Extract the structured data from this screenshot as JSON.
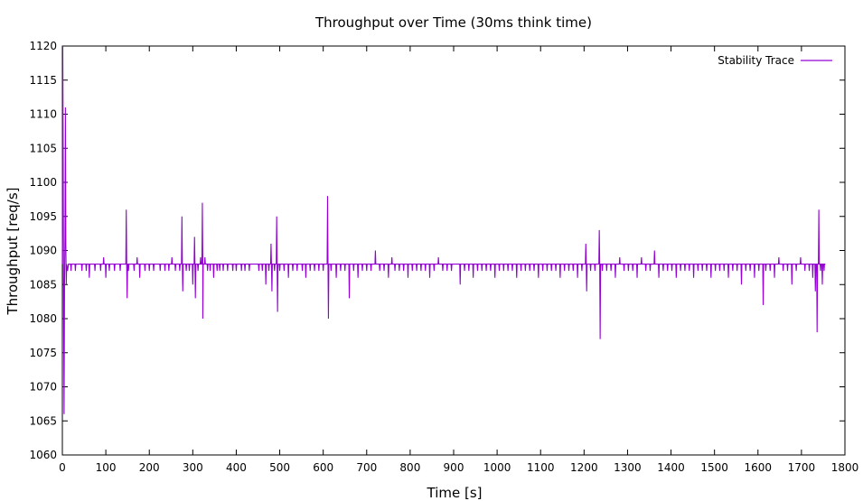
{
  "chart_data": {
    "type": "line",
    "title": "Throughput over Time (30ms think time)",
    "xlabel": "Time [s]",
    "ylabel": "Throughput [req/s]",
    "xlim": [
      0,
      1800
    ],
    "ylim": [
      1060,
      1120
    ],
    "xticks": [
      0,
      100,
      200,
      300,
      400,
      500,
      600,
      700,
      800,
      900,
      1000,
      1100,
      1200,
      1300,
      1400,
      1500,
      1600,
      1700,
      1800
    ],
    "yticks": [
      1060,
      1065,
      1070,
      1075,
      1080,
      1085,
      1090,
      1095,
      1100,
      1105,
      1110,
      1115,
      1120
    ],
    "grid": false,
    "legend_position": "top-right",
    "series": [
      {
        "name": "Stability Trace",
        "color": "#9400d3",
        "baseline": 1088,
        "x_start": 0,
        "x_end": 1755,
        "startup": [
          [
            0,
            1088
          ],
          [
            1,
            1120
          ],
          [
            2,
            1103
          ],
          [
            3,
            1080
          ],
          [
            4,
            1066
          ],
          [
            5,
            1085
          ],
          [
            6,
            1092
          ],
          [
            7,
            1111
          ],
          [
            8,
            1091
          ],
          [
            9,
            1085
          ],
          [
            10,
            1088
          ],
          [
            12,
            1087
          ],
          [
            14,
            1088
          ]
        ],
        "deviations": [
          [
            20,
            1087
          ],
          [
            30,
            1087
          ],
          [
            45,
            1087
          ],
          [
            55,
            1087
          ],
          [
            62,
            1086
          ],
          [
            75,
            1087
          ],
          [
            88,
            1087
          ],
          [
            95,
            1089
          ],
          [
            100,
            1086
          ],
          [
            108,
            1087
          ],
          [
            120,
            1087
          ],
          [
            133,
            1087
          ],
          [
            147,
            1096
          ],
          [
            149,
            1083
          ],
          [
            152,
            1087
          ],
          [
            165,
            1087
          ],
          [
            172,
            1089
          ],
          [
            178,
            1086
          ],
          [
            190,
            1087
          ],
          [
            200,
            1087
          ],
          [
            210,
            1087
          ],
          [
            225,
            1087
          ],
          [
            236,
            1087
          ],
          [
            245,
            1087
          ],
          [
            252,
            1089
          ],
          [
            260,
            1087
          ],
          [
            270,
            1087
          ],
          [
            275,
            1095
          ],
          [
            277,
            1084
          ],
          [
            285,
            1087
          ],
          [
            292,
            1087
          ],
          [
            300,
            1085
          ],
          [
            304,
            1092
          ],
          [
            306,
            1083
          ],
          [
            312,
            1087
          ],
          [
            318,
            1089
          ],
          [
            322,
            1097
          ],
          [
            323,
            1080
          ],
          [
            328,
            1089
          ],
          [
            334,
            1087
          ],
          [
            340,
            1087
          ],
          [
            348,
            1086
          ],
          [
            356,
            1087
          ],
          [
            362,
            1087
          ],
          [
            370,
            1087
          ],
          [
            380,
            1087
          ],
          [
            392,
            1087
          ],
          [
            400,
            1087
          ],
          [
            412,
            1087
          ],
          [
            420,
            1087
          ],
          [
            430,
            1087
          ],
          [
            445,
            1088
          ],
          [
            452,
            1087
          ],
          [
            460,
            1087
          ],
          [
            468,
            1085
          ],
          [
            475,
            1087
          ],
          [
            480,
            1091
          ],
          [
            482,
            1084
          ],
          [
            488,
            1087
          ],
          [
            493,
            1095
          ],
          [
            495,
            1081
          ],
          [
            500,
            1087
          ],
          [
            510,
            1087
          ],
          [
            520,
            1086
          ],
          [
            530,
            1087
          ],
          [
            540,
            1087
          ],
          [
            552,
            1087
          ],
          [
            560,
            1086
          ],
          [
            570,
            1087
          ],
          [
            580,
            1087
          ],
          [
            590,
            1087
          ],
          [
            600,
            1087
          ],
          [
            610,
            1098
          ],
          [
            612,
            1080
          ],
          [
            618,
            1087
          ],
          [
            630,
            1086
          ],
          [
            640,
            1087
          ],
          [
            650,
            1087
          ],
          [
            660,
            1083
          ],
          [
            670,
            1087
          ],
          [
            680,
            1086
          ],
          [
            690,
            1087
          ],
          [
            700,
            1087
          ],
          [
            710,
            1087
          ],
          [
            720,
            1090
          ],
          [
            730,
            1087
          ],
          [
            740,
            1087
          ],
          [
            750,
            1086
          ],
          [
            758,
            1089
          ],
          [
            765,
            1087
          ],
          [
            775,
            1087
          ],
          [
            785,
            1087
          ],
          [
            795,
            1086
          ],
          [
            805,
            1087
          ],
          [
            815,
            1087
          ],
          [
            825,
            1087
          ],
          [
            835,
            1087
          ],
          [
            845,
            1086
          ],
          [
            855,
            1087
          ],
          [
            865,
            1089
          ],
          [
            875,
            1087
          ],
          [
            885,
            1087
          ],
          [
            895,
            1087
          ],
          [
            905,
            1088
          ],
          [
            915,
            1085
          ],
          [
            925,
            1087
          ],
          [
            935,
            1087
          ],
          [
            945,
            1086
          ],
          [
            955,
            1087
          ],
          [
            965,
            1087
          ],
          [
            975,
            1087
          ],
          [
            985,
            1087
          ],
          [
            995,
            1086
          ],
          [
            1005,
            1087
          ],
          [
            1015,
            1087
          ],
          [
            1025,
            1087
          ],
          [
            1035,
            1087
          ],
          [
            1045,
            1086
          ],
          [
            1055,
            1087
          ],
          [
            1065,
            1087
          ],
          [
            1075,
            1087
          ],
          [
            1085,
            1087
          ],
          [
            1095,
            1086
          ],
          [
            1105,
            1087
          ],
          [
            1115,
            1087
          ],
          [
            1125,
            1087
          ],
          [
            1135,
            1087
          ],
          [
            1145,
            1086
          ],
          [
            1155,
            1087
          ],
          [
            1165,
            1087
          ],
          [
            1175,
            1087
          ],
          [
            1185,
            1086
          ],
          [
            1195,
            1087
          ],
          [
            1204,
            1091
          ],
          [
            1206,
            1084
          ],
          [
            1215,
            1087
          ],
          [
            1225,
            1087
          ],
          [
            1235,
            1093
          ],
          [
            1237,
            1077
          ],
          [
            1242,
            1087
          ],
          [
            1252,
            1087
          ],
          [
            1262,
            1087
          ],
          [
            1272,
            1086
          ],
          [
            1282,
            1089
          ],
          [
            1292,
            1087
          ],
          [
            1302,
            1087
          ],
          [
            1312,
            1087
          ],
          [
            1322,
            1086
          ],
          [
            1332,
            1089
          ],
          [
            1342,
            1087
          ],
          [
            1352,
            1087
          ],
          [
            1362,
            1090
          ],
          [
            1372,
            1086
          ],
          [
            1382,
            1087
          ],
          [
            1392,
            1087
          ],
          [
            1402,
            1087
          ],
          [
            1412,
            1086
          ],
          [
            1422,
            1087
          ],
          [
            1432,
            1087
          ],
          [
            1442,
            1087
          ],
          [
            1452,
            1086
          ],
          [
            1462,
            1087
          ],
          [
            1472,
            1087
          ],
          [
            1482,
            1087
          ],
          [
            1492,
            1086
          ],
          [
            1502,
            1087
          ],
          [
            1512,
            1087
          ],
          [
            1522,
            1087
          ],
          [
            1532,
            1086
          ],
          [
            1542,
            1087
          ],
          [
            1552,
            1087
          ],
          [
            1562,
            1085
          ],
          [
            1572,
            1087
          ],
          [
            1582,
            1087
          ],
          [
            1592,
            1086
          ],
          [
            1602,
            1087
          ],
          [
            1612,
            1082
          ],
          [
            1618,
            1087
          ],
          [
            1628,
            1087
          ],
          [
            1638,
            1086
          ],
          [
            1648,
            1089
          ],
          [
            1658,
            1087
          ],
          [
            1668,
            1087
          ],
          [
            1678,
            1085
          ],
          [
            1688,
            1087
          ],
          [
            1698,
            1089
          ],
          [
            1708,
            1087
          ],
          [
            1718,
            1087
          ],
          [
            1726,
            1086
          ],
          [
            1732,
            1084
          ],
          [
            1736,
            1078
          ],
          [
            1740,
            1096
          ],
          [
            1744,
            1087
          ],
          [
            1748,
            1085
          ],
          [
            1752,
            1087
          ]
        ]
      }
    ]
  }
}
